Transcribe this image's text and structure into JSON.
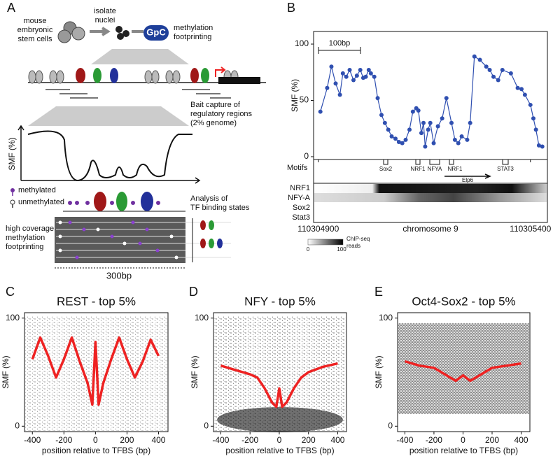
{
  "panels": [
    "A",
    "B",
    "C",
    "D",
    "E"
  ],
  "diagram": {
    "cells": [
      "mouse",
      "embryonic",
      "stem cells"
    ],
    "isolate": [
      "isolate",
      "nuclei"
    ],
    "gpc": "GpC",
    "footprinting": [
      "methylation",
      "footprinting"
    ],
    "bait": [
      "Bait capture of",
      "regulatory regions",
      "(2% genome)"
    ],
    "smf": "SMF (%)",
    "methylated": "methylated",
    "unmethylated": "unmethylated",
    "analysis": [
      "Analysis of",
      "TF binding states"
    ],
    "coverage": [
      "high coverage",
      "methylation",
      "footprinting"
    ],
    "scale": "300bp"
  },
  "genome": {
    "scalebar": "100bp",
    "motifs_label": "Motifs",
    "motifs": [
      "Sox2",
      "NRF1",
      "NFYA",
      "NRF1",
      "STAT3"
    ],
    "gene": "Elp6",
    "tracks": [
      "NRF1",
      "NFY-A",
      "Sox2",
      "Stat3"
    ],
    "colorbar": {
      "min": "0",
      "max": "100",
      "label": [
        "ChIP-seq",
        "reads"
      ]
    }
  },
  "chart_data": [
    {
      "type": "line",
      "ylabel": "SMF (%)",
      "xlabel": "chromosome 9",
      "color": "#2f4fb0",
      "markers": true,
      "x": [
        110304905,
        110304921,
        110304931,
        110304941,
        110304951,
        110304958,
        110304966,
        110304974,
        110304983,
        110304991,
        110304999,
        110305006,
        110305012,
        110305019,
        110305024,
        110305032,
        110305040,
        110305049,
        110305057,
        110305065,
        110305073,
        110305082,
        110305090,
        110305098,
        110305106,
        110305115,
        110305123,
        110305131,
        110305136,
        110305143,
        110305148,
        110305152,
        110305159,
        110305164,
        110305172,
        110305182,
        110305192,
        110305202,
        110305214,
        110305222,
        110305230,
        110305238,
        110305251,
        110305258,
        110305268,
        110305281,
        110305296,
        110305304,
        110305313,
        110305324,
        110305334,
        110305354,
        110305370,
        110305379,
        110305387,
        110305400,
        110305407,
        110305413,
        110305420,
        110305428
      ],
      "values": [
        40,
        61,
        80,
        65,
        55,
        74,
        71,
        77,
        68,
        72,
        77,
        70,
        71,
        77,
        74,
        71,
        52,
        37,
        30,
        24,
        18,
        16,
        13,
        12,
        15,
        24,
        40,
        43,
        41,
        21,
        30,
        9,
        24,
        30,
        12,
        27,
        34,
        52,
        30,
        15,
        12,
        18,
        15,
        30,
        89,
        86,
        80,
        77,
        71,
        68,
        77,
        74,
        61,
        60,
        55,
        46,
        34,
        24,
        10,
        9
      ],
      "xlim": [
        110304889,
        110305440
      ],
      "ylim": [
        -2.5,
        111.2
      ],
      "xticks": [
        110304900,
        110305400
      ],
      "yticks": [
        0,
        50,
        100
      ]
    },
    {
      "type": "line",
      "title": "REST - top 5%",
      "ylabel": "SMF (%)",
      "xlabel": "position relative to TFBS (bp)",
      "color": "#ee2222",
      "markers": false,
      "x": [
        -400,
        -350,
        -300,
        -250,
        -200,
        -150,
        -100,
        -50,
        -20,
        0,
        20,
        50,
        100,
        150,
        200,
        250,
        300,
        350,
        400
      ],
      "values": [
        62,
        82,
        65,
        45,
        62,
        82,
        60,
        40,
        20,
        78,
        20,
        40,
        62,
        82,
        62,
        45,
        60,
        80,
        65
      ],
      "xlim": [
        -450,
        460
      ],
      "ylim": [
        -5,
        105
      ],
      "xticks": [
        -400,
        -200,
        0,
        200,
        400
      ],
      "yticks": [
        0,
        100
      ]
    },
    {
      "type": "line",
      "title": "NFY - top 5%",
      "ylabel": "SMF (%)",
      "xlabel": "position relative to TFBS (bp)",
      "color": "#ee2222",
      "markers": false,
      "x": [
        -400,
        -300,
        -200,
        -150,
        -100,
        -50,
        -20,
        0,
        20,
        50,
        100,
        150,
        200,
        300,
        400
      ],
      "values": [
        56,
        52,
        48,
        45,
        35,
        22,
        18,
        35,
        18,
        22,
        35,
        45,
        50,
        55,
        58
      ],
      "xlim": [
        -450,
        460
      ],
      "ylim": [
        -5,
        105
      ],
      "xticks": [
        -400,
        -200,
        0,
        200,
        400
      ],
      "yticks": [
        0,
        100
      ]
    },
    {
      "type": "line",
      "title": "Oct4-Sox2 - top 5%",
      "ylabel": "SMF (%)",
      "xlabel": "position relative to TFBS (bp)",
      "color": "#ee2222",
      "markers": false,
      "x": [
        -400,
        -300,
        -200,
        -100,
        -50,
        0,
        50,
        100,
        200,
        300,
        400
      ],
      "values": [
        60,
        56,
        54,
        46,
        42,
        47,
        42,
        46,
        54,
        56,
        58
      ],
      "xlim": [
        -450,
        460
      ],
      "ylim": [
        -5,
        105
      ],
      "xticks": [
        -400,
        -200,
        0,
        200,
        400
      ],
      "yticks": [
        0,
        100
      ]
    }
  ]
}
